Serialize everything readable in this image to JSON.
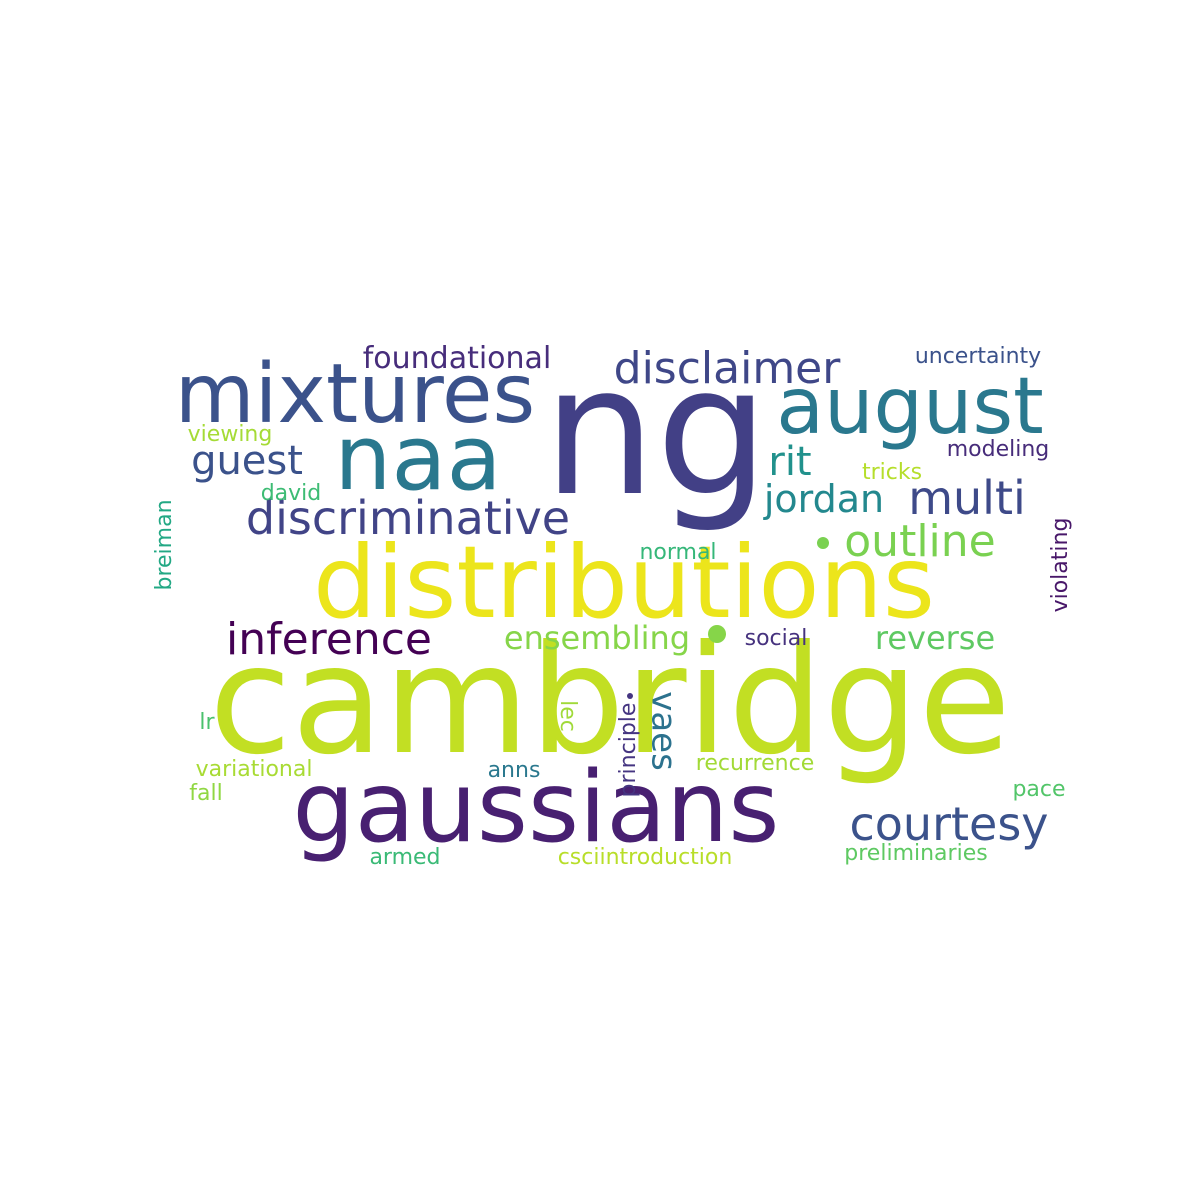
{
  "words": [
    {
      "text": "cambridge",
      "color": "#c2df23"
    },
    {
      "text": "ng",
      "color": "#424086"
    },
    {
      "text": "distributions",
      "color": "#ece51b"
    },
    {
      "text": "gaussians",
      "color": "#482071"
    },
    {
      "text": "naa",
      "color": "#2a788e"
    },
    {
      "text": "mixtures",
      "color": "#3b528b"
    },
    {
      "text": "august",
      "color": "#2a788e"
    },
    {
      "text": "disclaimer",
      "color": "#3f4788"
    },
    {
      "text": "foundational",
      "color": "#472d7b"
    },
    {
      "text": "uncertainty",
      "color": "#3b528b"
    },
    {
      "text": "guest",
      "color": "#3b528b"
    },
    {
      "text": "rit",
      "color": "#21918c"
    },
    {
      "text": "multi",
      "color": "#3e4a89"
    },
    {
      "text": "jordan",
      "color": "#23888e"
    },
    {
      "text": "discriminative",
      "color": "#414487"
    },
    {
      "text": "outline",
      "color": "#7ad151"
    },
    {
      "text": "inference",
      "color": "#440154"
    },
    {
      "text": "ensembling",
      "color": "#86d549"
    },
    {
      "text": "reverse",
      "color": "#5ec962"
    },
    {
      "text": "courtesy",
      "color": "#3b528b"
    },
    {
      "text": "vaes",
      "color": "#2c728e"
    },
    {
      "text": "viewing",
      "color": "#a5db36"
    },
    {
      "text": "modeling",
      "color": "#472c7a"
    },
    {
      "text": "tricks",
      "color": "#b5de2b"
    },
    {
      "text": "david",
      "color": "#3dbc74"
    },
    {
      "text": "breiman",
      "color": "#22a884"
    },
    {
      "text": "violating",
      "color": "#481769"
    },
    {
      "text": "normal",
      "color": "#35b779"
    },
    {
      "text": "social",
      "color": "#46327e"
    },
    {
      "text": "lec",
      "color": "#a0da39"
    },
    {
      "text": "principle",
      "color": "#453581"
    },
    {
      "text": "lr",
      "color": "#4ac16d"
    },
    {
      "text": "variational",
      "color": "#a8db34"
    },
    {
      "text": "recurrence",
      "color": "#a2da37"
    },
    {
      "text": "fall",
      "color": "#90d743"
    },
    {
      "text": "anns",
      "color": "#2a788e"
    },
    {
      "text": "pace",
      "color": "#52c569"
    },
    {
      "text": "armed",
      "color": "#3aba76"
    },
    {
      "text": "csciintroduction",
      "color": "#b8de29"
    },
    {
      "text": "preliminaries",
      "color": "#5ec962"
    }
  ]
}
